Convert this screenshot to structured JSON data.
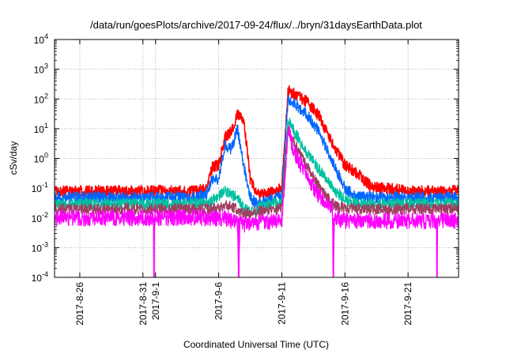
{
  "chart_data": {
    "type": "line",
    "title": "/data/run/goesPlots/archive/2017-09-24/flux/../bryn/31daysEarthData.plot",
    "xlabel": "Coordinated Universal Time (UTC)",
    "ylabel": "cSv/day",
    "y_scale": "log",
    "ylim": [
      0.0001,
      10000
    ],
    "xlim": [
      "2017-08-24",
      "2017-09-25"
    ],
    "grid": true,
    "legend": "none",
    "y_ticks": [
      {
        "base": "10",
        "exp": "-4",
        "value": 0.0001
      },
      {
        "base": "10",
        "exp": "-3",
        "value": 0.001
      },
      {
        "base": "10",
        "exp": "-2",
        "value": 0.01
      },
      {
        "base": "10",
        "exp": "-1",
        "value": 0.1
      },
      {
        "base": "10",
        "exp": "0",
        "value": 1
      },
      {
        "base": "10",
        "exp": "1",
        "value": 10
      },
      {
        "base": "10",
        "exp": "2",
        "value": 100
      },
      {
        "base": "10",
        "exp": "3",
        "value": 1000
      },
      {
        "base": "10",
        "exp": "4",
        "value": 10000
      }
    ],
    "x_ticks": [
      "2017-8-26",
      "2017-8-31",
      "2017-9-1",
      "2017-9-6",
      "2017-9-11",
      "2017-9-16",
      "2017-9-21"
    ],
    "x_grid_dates": [
      "2017-08-26",
      "2017-08-31",
      "2017-09-01",
      "2017-09-06",
      "2017-09-11",
      "2017-09-16",
      "2017-09-21"
    ],
    "series": [
      {
        "color": "#ff0000",
        "x": [
          "2017-08-24",
          "2017-08-28",
          "2017-09-01",
          "2017-09-04",
          "2017-09-05",
          "2017-09-05T12:00",
          "2017-09-06",
          "2017-09-06T12:00",
          "2017-09-07",
          "2017-09-07T12:00",
          "2017-09-08",
          "2017-09-08T12:00",
          "2017-09-09",
          "2017-09-10",
          "2017-09-10T12:00",
          "2017-09-11",
          "2017-09-11T12:00",
          "2017-09-12",
          "2017-09-13",
          "2017-09-14",
          "2017-09-15",
          "2017-09-16",
          "2017-09-17",
          "2017-09-18",
          "2017-09-20",
          "2017-09-22",
          "2017-09-25"
        ],
        "y": [
          0.08,
          0.08,
          0.08,
          0.08,
          0.09,
          0.5,
          0.6,
          5,
          8,
          30,
          20,
          0.2,
          0.06,
          0.07,
          0.08,
          0.1,
          200,
          150,
          80,
          25,
          3,
          0.6,
          0.3,
          0.12,
          0.09,
          0.08,
          0.08
        ]
      },
      {
        "color": "#0066ff",
        "x": [
          "2017-08-24",
          "2017-09-04",
          "2017-09-05",
          "2017-09-05T12:00",
          "2017-09-06",
          "2017-09-06T12:00",
          "2017-09-07",
          "2017-09-07T12:00",
          "2017-09-08",
          "2017-09-08T12:00",
          "2017-09-09",
          "2017-09-10",
          "2017-09-11",
          "2017-09-11T12:00",
          "2017-09-12",
          "2017-09-13",
          "2017-09-14",
          "2017-09-15",
          "2017-09-16",
          "2017-09-17",
          "2017-09-18",
          "2017-09-20",
          "2017-09-25"
        ],
        "y": [
          0.05,
          0.05,
          0.06,
          0.2,
          0.2,
          3,
          2,
          10,
          0.5,
          0.05,
          0.03,
          0.04,
          0.06,
          100,
          70,
          30,
          7,
          0.8,
          0.1,
          0.05,
          0.05,
          0.05,
          0.05
        ]
      },
      {
        "color": "#00c0a0",
        "x": [
          "2017-08-24",
          "2017-09-04",
          "2017-09-05",
          "2017-09-05T12:00",
          "2017-09-06",
          "2017-09-06T12:00",
          "2017-09-07",
          "2017-09-07T12:00",
          "2017-09-08",
          "2017-09-08T12:00",
          "2017-09-09",
          "2017-09-10",
          "2017-09-11",
          "2017-09-11T12:00",
          "2017-09-12",
          "2017-09-13",
          "2017-09-14",
          "2017-09-15",
          "2017-09-16",
          "2017-09-17",
          "2017-09-18",
          "2017-09-20",
          "2017-09-25"
        ],
        "y": [
          0.03,
          0.03,
          0.03,
          0.04,
          0.05,
          0.08,
          0.06,
          0.05,
          0.02,
          0.015,
          0.02,
          0.03,
          0.03,
          20,
          8,
          1.5,
          0.4,
          0.1,
          0.04,
          0.03,
          0.03,
          0.03,
          0.03
        ]
      },
      {
        "color": "#a04060",
        "x": [
          "2017-08-24",
          "2017-09-04",
          "2017-09-06",
          "2017-09-06T12:00",
          "2017-09-08",
          "2017-09-09",
          "2017-09-10",
          "2017-09-11",
          "2017-09-11T12:00",
          "2017-09-12",
          "2017-09-13",
          "2017-09-14",
          "2017-09-15",
          "2017-09-16",
          "2017-09-18",
          "2017-09-25"
        ],
        "y": [
          0.02,
          0.02,
          0.02,
          0.03,
          0.015,
          0.015,
          0.02,
          0.02,
          10,
          3,
          0.6,
          0.1,
          0.03,
          0.02,
          0.02,
          0.02
        ]
      },
      {
        "color": "#ff00ff",
        "x": [
          "2017-08-24",
          "2017-08-31T20:00",
          "2017-08-31T21:00",
          "2017-08-31T22:00",
          "2017-09-04",
          "2017-09-06",
          "2017-09-06T12:00",
          "2017-09-07",
          "2017-09-07T12:00",
          "2017-09-07T14:00",
          "2017-09-07T16:00",
          "2017-09-08",
          "2017-09-08T12:00",
          "2017-09-10",
          "2017-09-11",
          "2017-09-11T12:00",
          "2017-09-12",
          "2017-09-13",
          "2017-09-14",
          "2017-09-15",
          "2017-09-15T02:00",
          "2017-09-15T04:00",
          "2017-09-16",
          "2017-09-18",
          "2017-09-23T06:00",
          "2017-09-23T07:00",
          "2017-09-23T08:00",
          "2017-09-25"
        ],
        "y": [
          0.01,
          0.01,
          0.0001,
          0.01,
          0.01,
          0.01,
          0.01,
          0.008,
          0.006,
          0.0001,
          0.006,
          0.006,
          0.007,
          0.007,
          0.008,
          10,
          1.5,
          0.25,
          0.05,
          0.02,
          0.0001,
          0.01,
          0.008,
          0.008,
          0.008,
          0.0001,
          0.008,
          0.008
        ]
      }
    ]
  }
}
